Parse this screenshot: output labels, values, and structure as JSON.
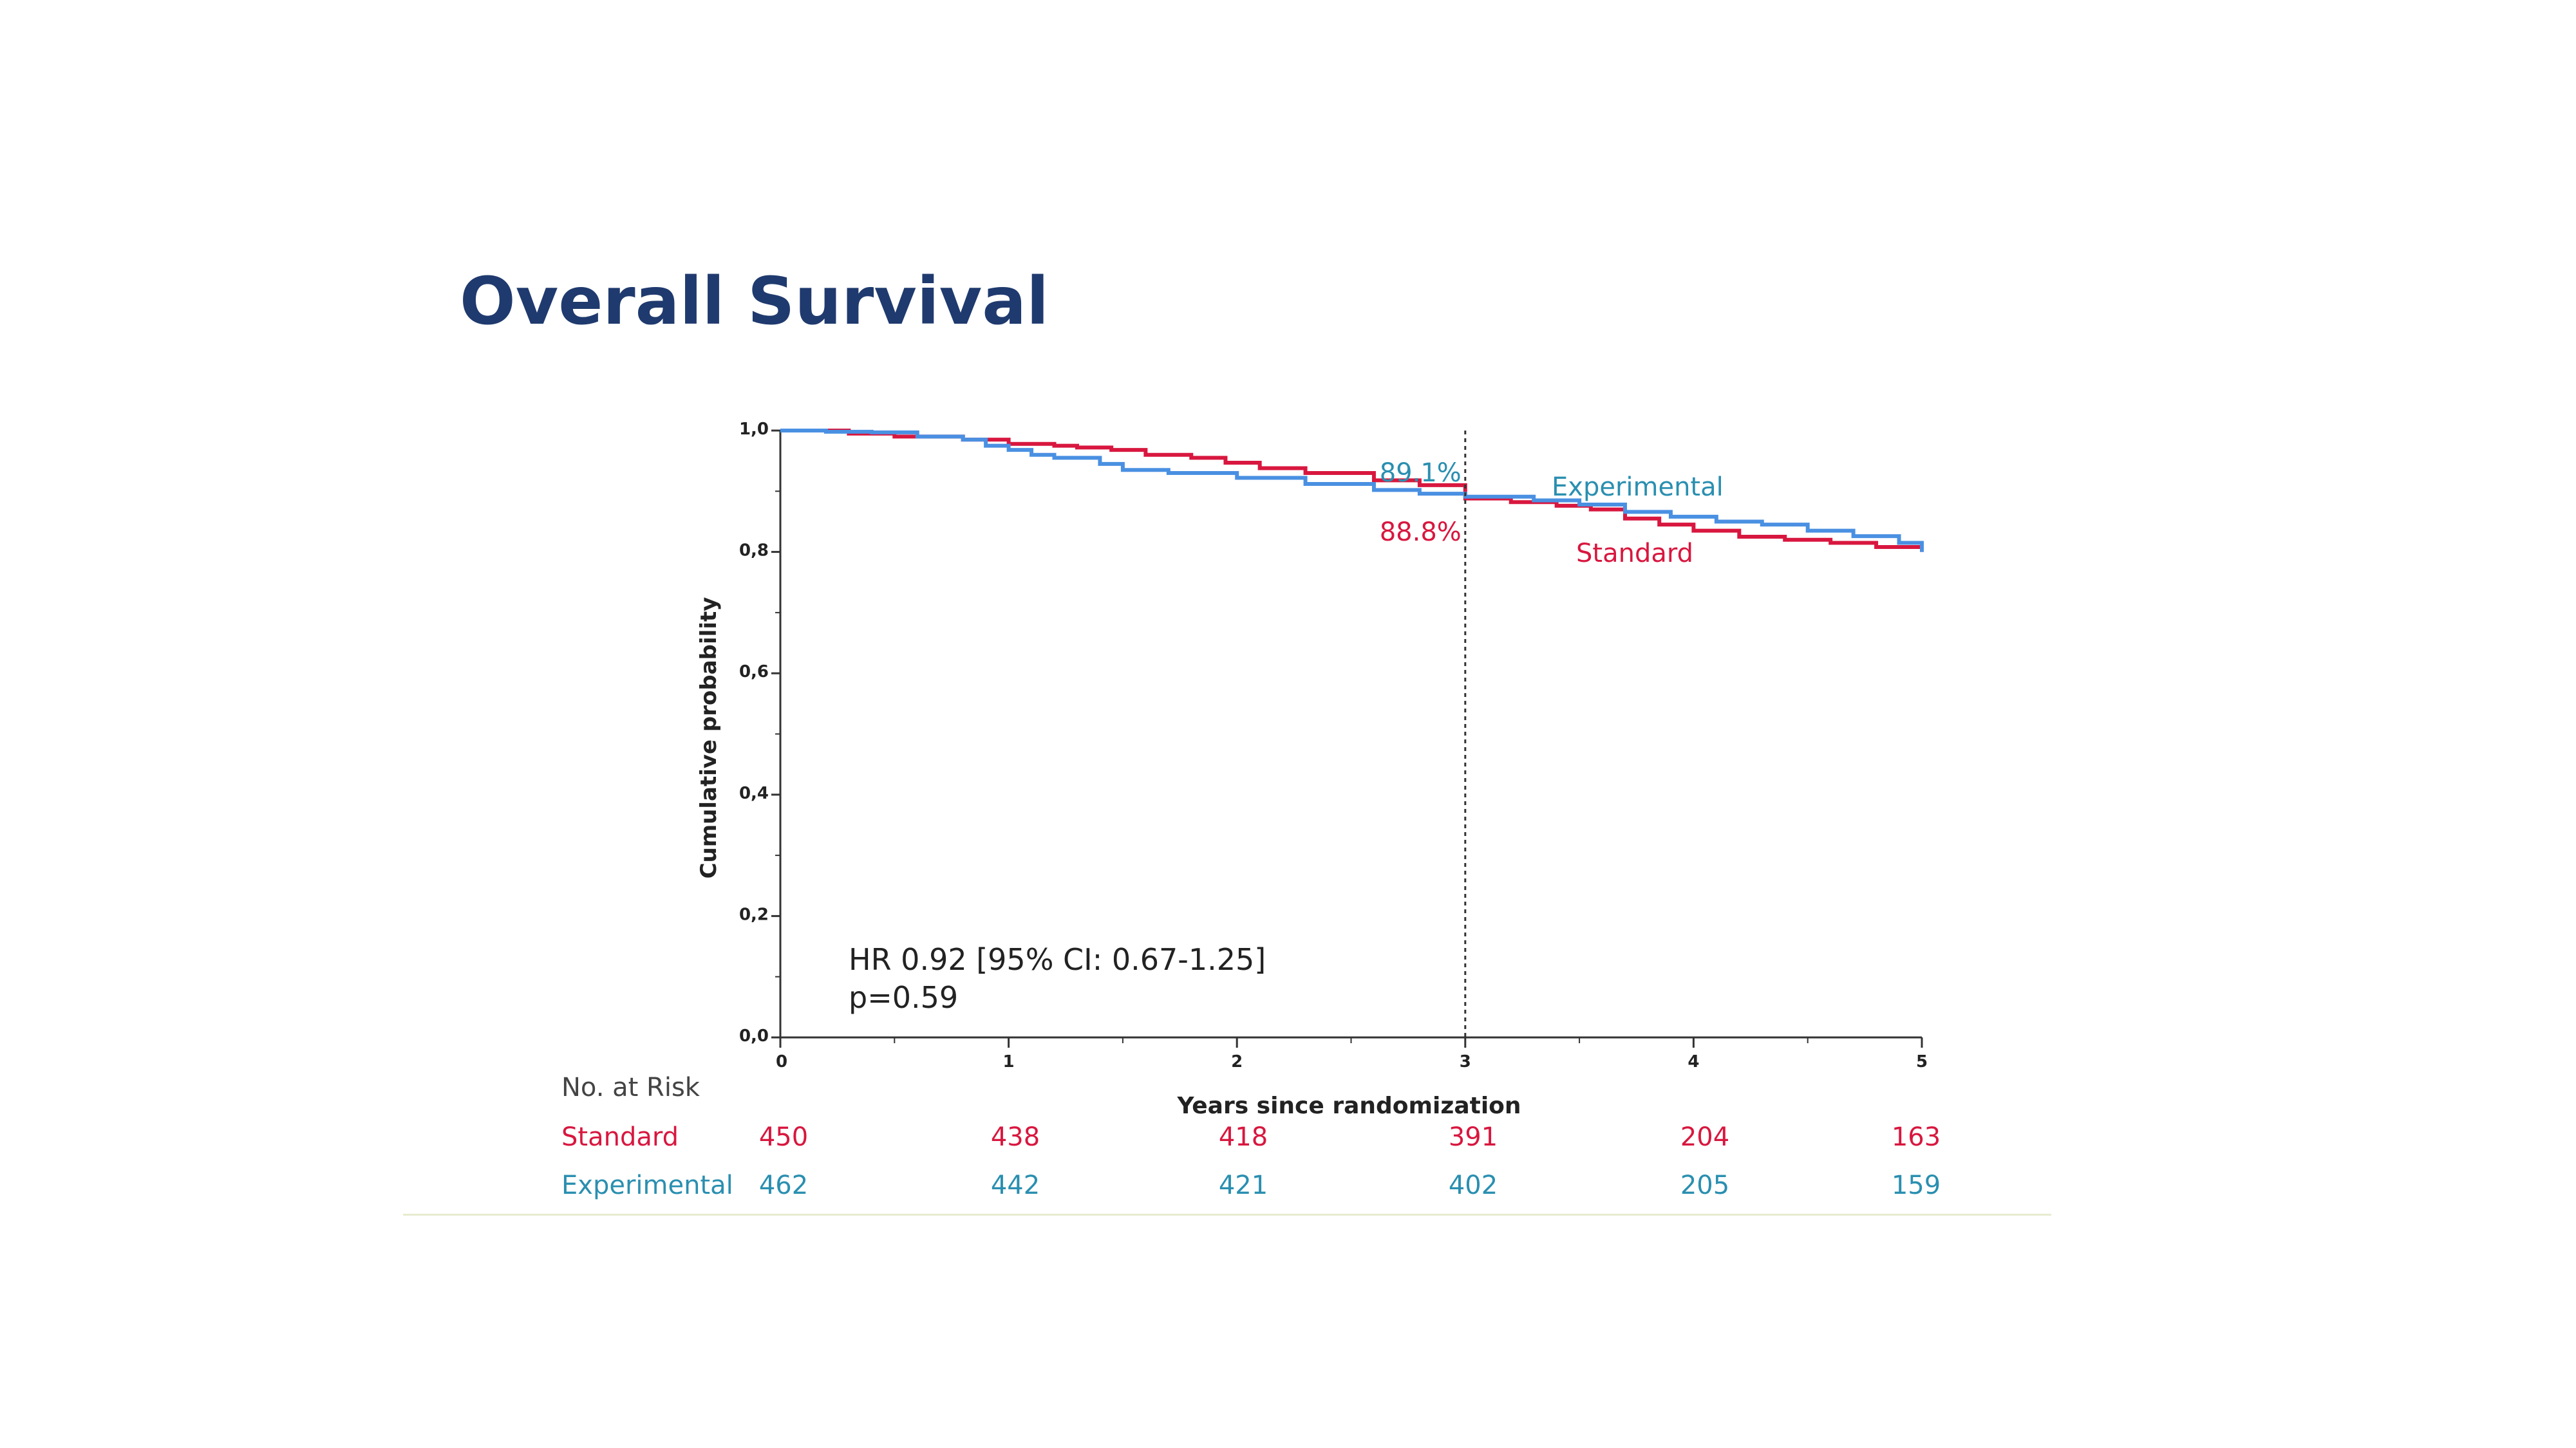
{
  "slide": {
    "title": "Overall Survival"
  },
  "colors": {
    "standard": "#d8173f",
    "experimental": "#4a90e2",
    "experimental_text": "#2a8fb0",
    "title": "#1f3a6e",
    "axis": "#333333"
  },
  "chart_data": {
    "type": "line",
    "title": "Overall Survival",
    "xlabel": "Years since randomization",
    "ylabel": "Cumulative probability",
    "xlim": [
      0,
      5
    ],
    "ylim": [
      0,
      1
    ],
    "x_ticks": [
      "0",
      "1",
      "2",
      "3",
      "4",
      "5"
    ],
    "y_ticks": [
      "0,0",
      "0,2",
      "0,4",
      "0,6",
      "0,8",
      "1,0"
    ],
    "x_tick_values": [
      0,
      1,
      2,
      3,
      4,
      5
    ],
    "y_tick_values": [
      0,
      0.2,
      0.4,
      0.6,
      0.8,
      1.0
    ],
    "grid": false,
    "reference_line_x": 3,
    "series": [
      {
        "name": "Standard",
        "color": "#d8173f",
        "x": [
          0,
          0.3,
          0.5,
          0.8,
          1.0,
          1.2,
          1.3,
          1.45,
          1.6,
          1.8,
          1.95,
          2.1,
          2.3,
          2.6,
          2.8,
          3.0,
          3.2,
          3.4,
          3.55,
          3.7,
          3.85,
          4.0,
          4.2,
          4.4,
          4.6,
          4.8,
          5.0
        ],
        "y": [
          1.0,
          0.995,
          0.99,
          0.985,
          0.978,
          0.975,
          0.972,
          0.968,
          0.96,
          0.955,
          0.947,
          0.938,
          0.93,
          0.918,
          0.91,
          0.888,
          0.882,
          0.876,
          0.87,
          0.855,
          0.845,
          0.835,
          0.825,
          0.82,
          0.815,
          0.808,
          0.8
        ]
      },
      {
        "name": "Experimental",
        "color": "#4a90e2",
        "x": [
          0,
          0.2,
          0.4,
          0.6,
          0.8,
          0.9,
          1.0,
          1.1,
          1.2,
          1.4,
          1.5,
          1.7,
          2.0,
          2.3,
          2.6,
          2.8,
          3.0,
          3.3,
          3.5,
          3.7,
          3.9,
          4.1,
          4.3,
          4.5,
          4.7,
          4.9,
          5.0
        ],
        "y": [
          1.0,
          0.998,
          0.997,
          0.99,
          0.985,
          0.975,
          0.968,
          0.96,
          0.955,
          0.945,
          0.935,
          0.93,
          0.922,
          0.912,
          0.902,
          0.896,
          0.891,
          0.885,
          0.878,
          0.866,
          0.858,
          0.85,
          0.845,
          0.835,
          0.826,
          0.815,
          0.8
        ]
      }
    ],
    "annotations": {
      "exp_pct": "89.1%",
      "std_pct": "88.8%",
      "exp_label": "Experimental",
      "std_label": "Standard",
      "hr": "HR 0.92 [95% CI: 0.67-1.25]",
      "p": "p=0.59"
    }
  },
  "at_risk": {
    "title": "No. at Risk",
    "rows": [
      {
        "label": "Standard",
        "values": [
          "450",
          "438",
          "418",
          "391",
          "204",
          "163"
        ]
      },
      {
        "label": "Experimental",
        "values": [
          "462",
          "442",
          "421",
          "402",
          "205",
          "159"
        ]
      }
    ]
  }
}
